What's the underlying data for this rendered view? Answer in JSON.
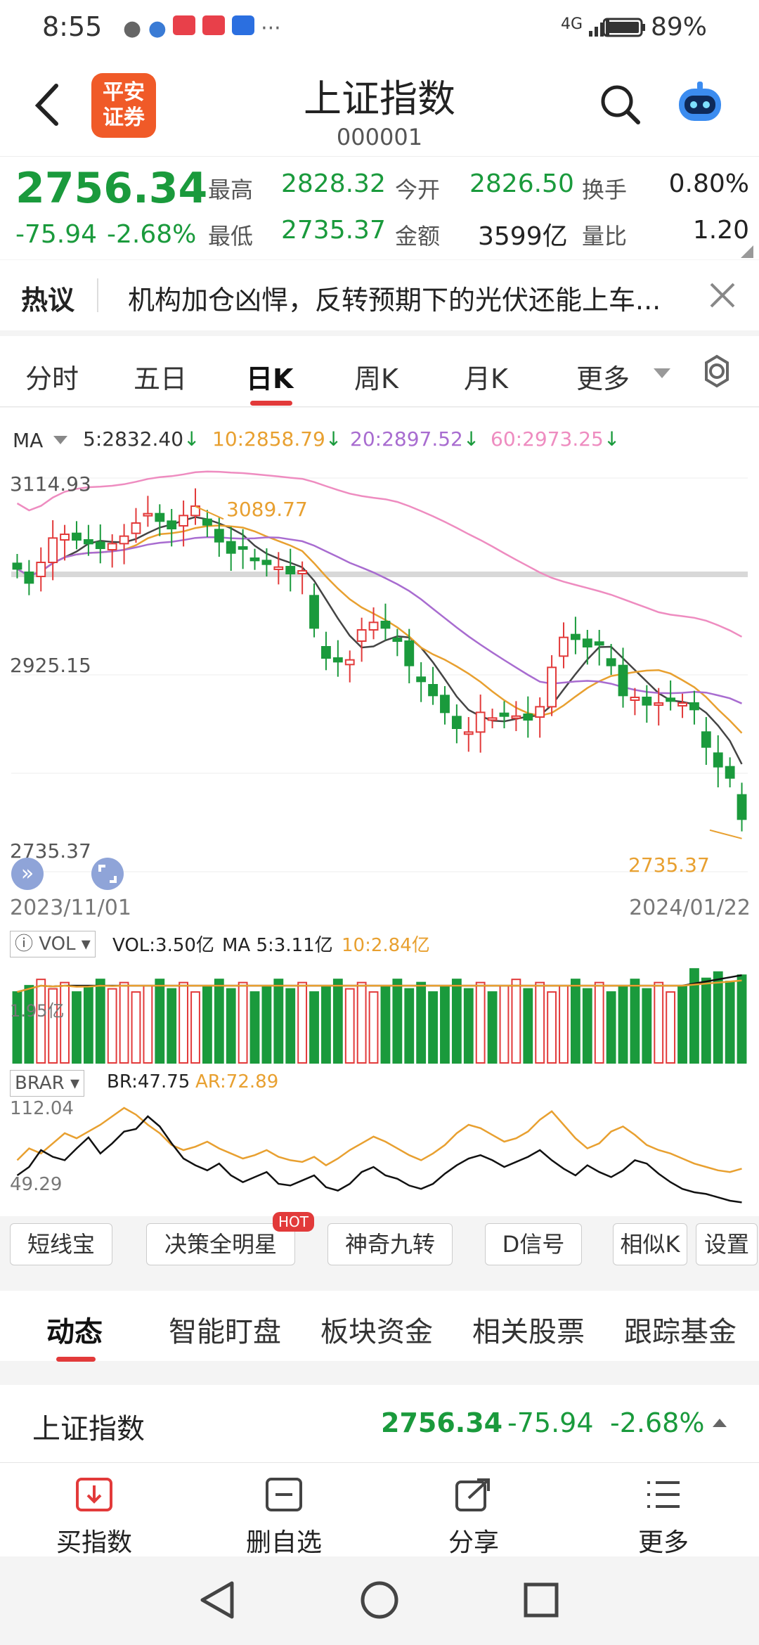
{
  "status": {
    "time": "8:55",
    "network": "4G",
    "battery": "89%"
  },
  "header": {
    "logo_line1": "平安",
    "logo_line2": "证券",
    "title": "上证指数",
    "code": "000001"
  },
  "quote": {
    "price": "2756.34",
    "change": "-75.94",
    "change_pct": "-2.68%",
    "high_label": "最高",
    "high": "2828.32",
    "open_label": "今开",
    "open": "2826.50",
    "turnover_label": "换手",
    "turnover": "0.80%",
    "low_label": "最低",
    "low": "2735.37",
    "amount_label": "金额",
    "amount": "3599亿",
    "ratio_label": "量比",
    "ratio": "1.20"
  },
  "hot": {
    "label": "热议",
    "text": "机构加仓凶悍，反转预期下的光伏还能上车..."
  },
  "tabs": [
    "分时",
    "五日",
    "日K",
    "周K",
    "月K",
    "更多"
  ],
  "ma": {
    "label": "MA",
    "ma5": "5:2832.40",
    "ma10": "10:2858.79",
    "ma20": "20:2897.52",
    "ma60": "60:2973.25"
  },
  "price_axis": {
    "top": "3114.93",
    "mid": "2925.15",
    "bottom": "2735.37"
  },
  "annotations": {
    "max": "3089.77",
    "min": "2735.37"
  },
  "dates": {
    "start": "2023/11/01",
    "end": "2024/01/22"
  },
  "vol": {
    "label": "VOL",
    "vol": "VOL:3.50亿",
    "ma5": "MA 5:3.11亿",
    "ma10": "10:2.84亿",
    "axis": "1.95亿"
  },
  "brar": {
    "label": "BRAR",
    "br": "BR:47.75",
    "ar": "AR:72.89",
    "top": "112.04",
    "bottom": "49.29"
  },
  "tools": [
    "短线宝",
    "决策全明星",
    "神奇九转",
    "D信号",
    "相似K",
    "设置"
  ],
  "hot_badge": "HOT",
  "bottom_tabs": [
    "动态",
    "智能盯盘",
    "板块资金",
    "相关股票",
    "跟踪基金"
  ],
  "index_row": {
    "name": "上证指数",
    "price": "2756.34",
    "change": "-75.94",
    "change_pct": "-2.68%"
  },
  "actions": [
    "买指数",
    "删自选",
    "分享",
    "更多"
  ],
  "colors": {
    "up": "#e23a3a",
    "down": "#1a9a3c",
    "ma5": "#444444",
    "ma10": "#e8a030",
    "ma20": "#a86cd0",
    "ma60": "#ee8cc0",
    "accent": "#e23a3a"
  },
  "chart_data": {
    "type": "candlestick",
    "x_range": [
      "2023/11/01",
      "2024/01/22"
    ],
    "ylim": [
      2735.37,
      3114.93
    ],
    "high": 3089.77,
    "low": 2735.37,
    "closes": [
      3023,
      3008,
      3030,
      3056,
      3060,
      3054,
      3050,
      3045,
      3050,
      3058,
      3072,
      3082,
      3074,
      3066,
      3080,
      3090,
      3070,
      3052,
      3040,
      3045,
      3032,
      3028,
      3025,
      3018,
      3021,
      2960,
      2928,
      2924,
      2926,
      2958,
      2966,
      2960,
      2946,
      2920,
      2903,
      2888,
      2870,
      2853,
      2849,
      2870,
      2864,
      2866,
      2866,
      2862,
      2876,
      2918,
      2950,
      2948,
      2940,
      2942,
      2920,
      2888,
      2886,
      2878,
      2880,
      2882,
      2880,
      2873,
      2833,
      2812,
      2800,
      2756
    ],
    "ma": {
      "ma5": 2832.4,
      "ma10": 2858.79,
      "ma20": 2897.52,
      "ma60": 2973.25
    },
    "volume_max": 3.8
  }
}
